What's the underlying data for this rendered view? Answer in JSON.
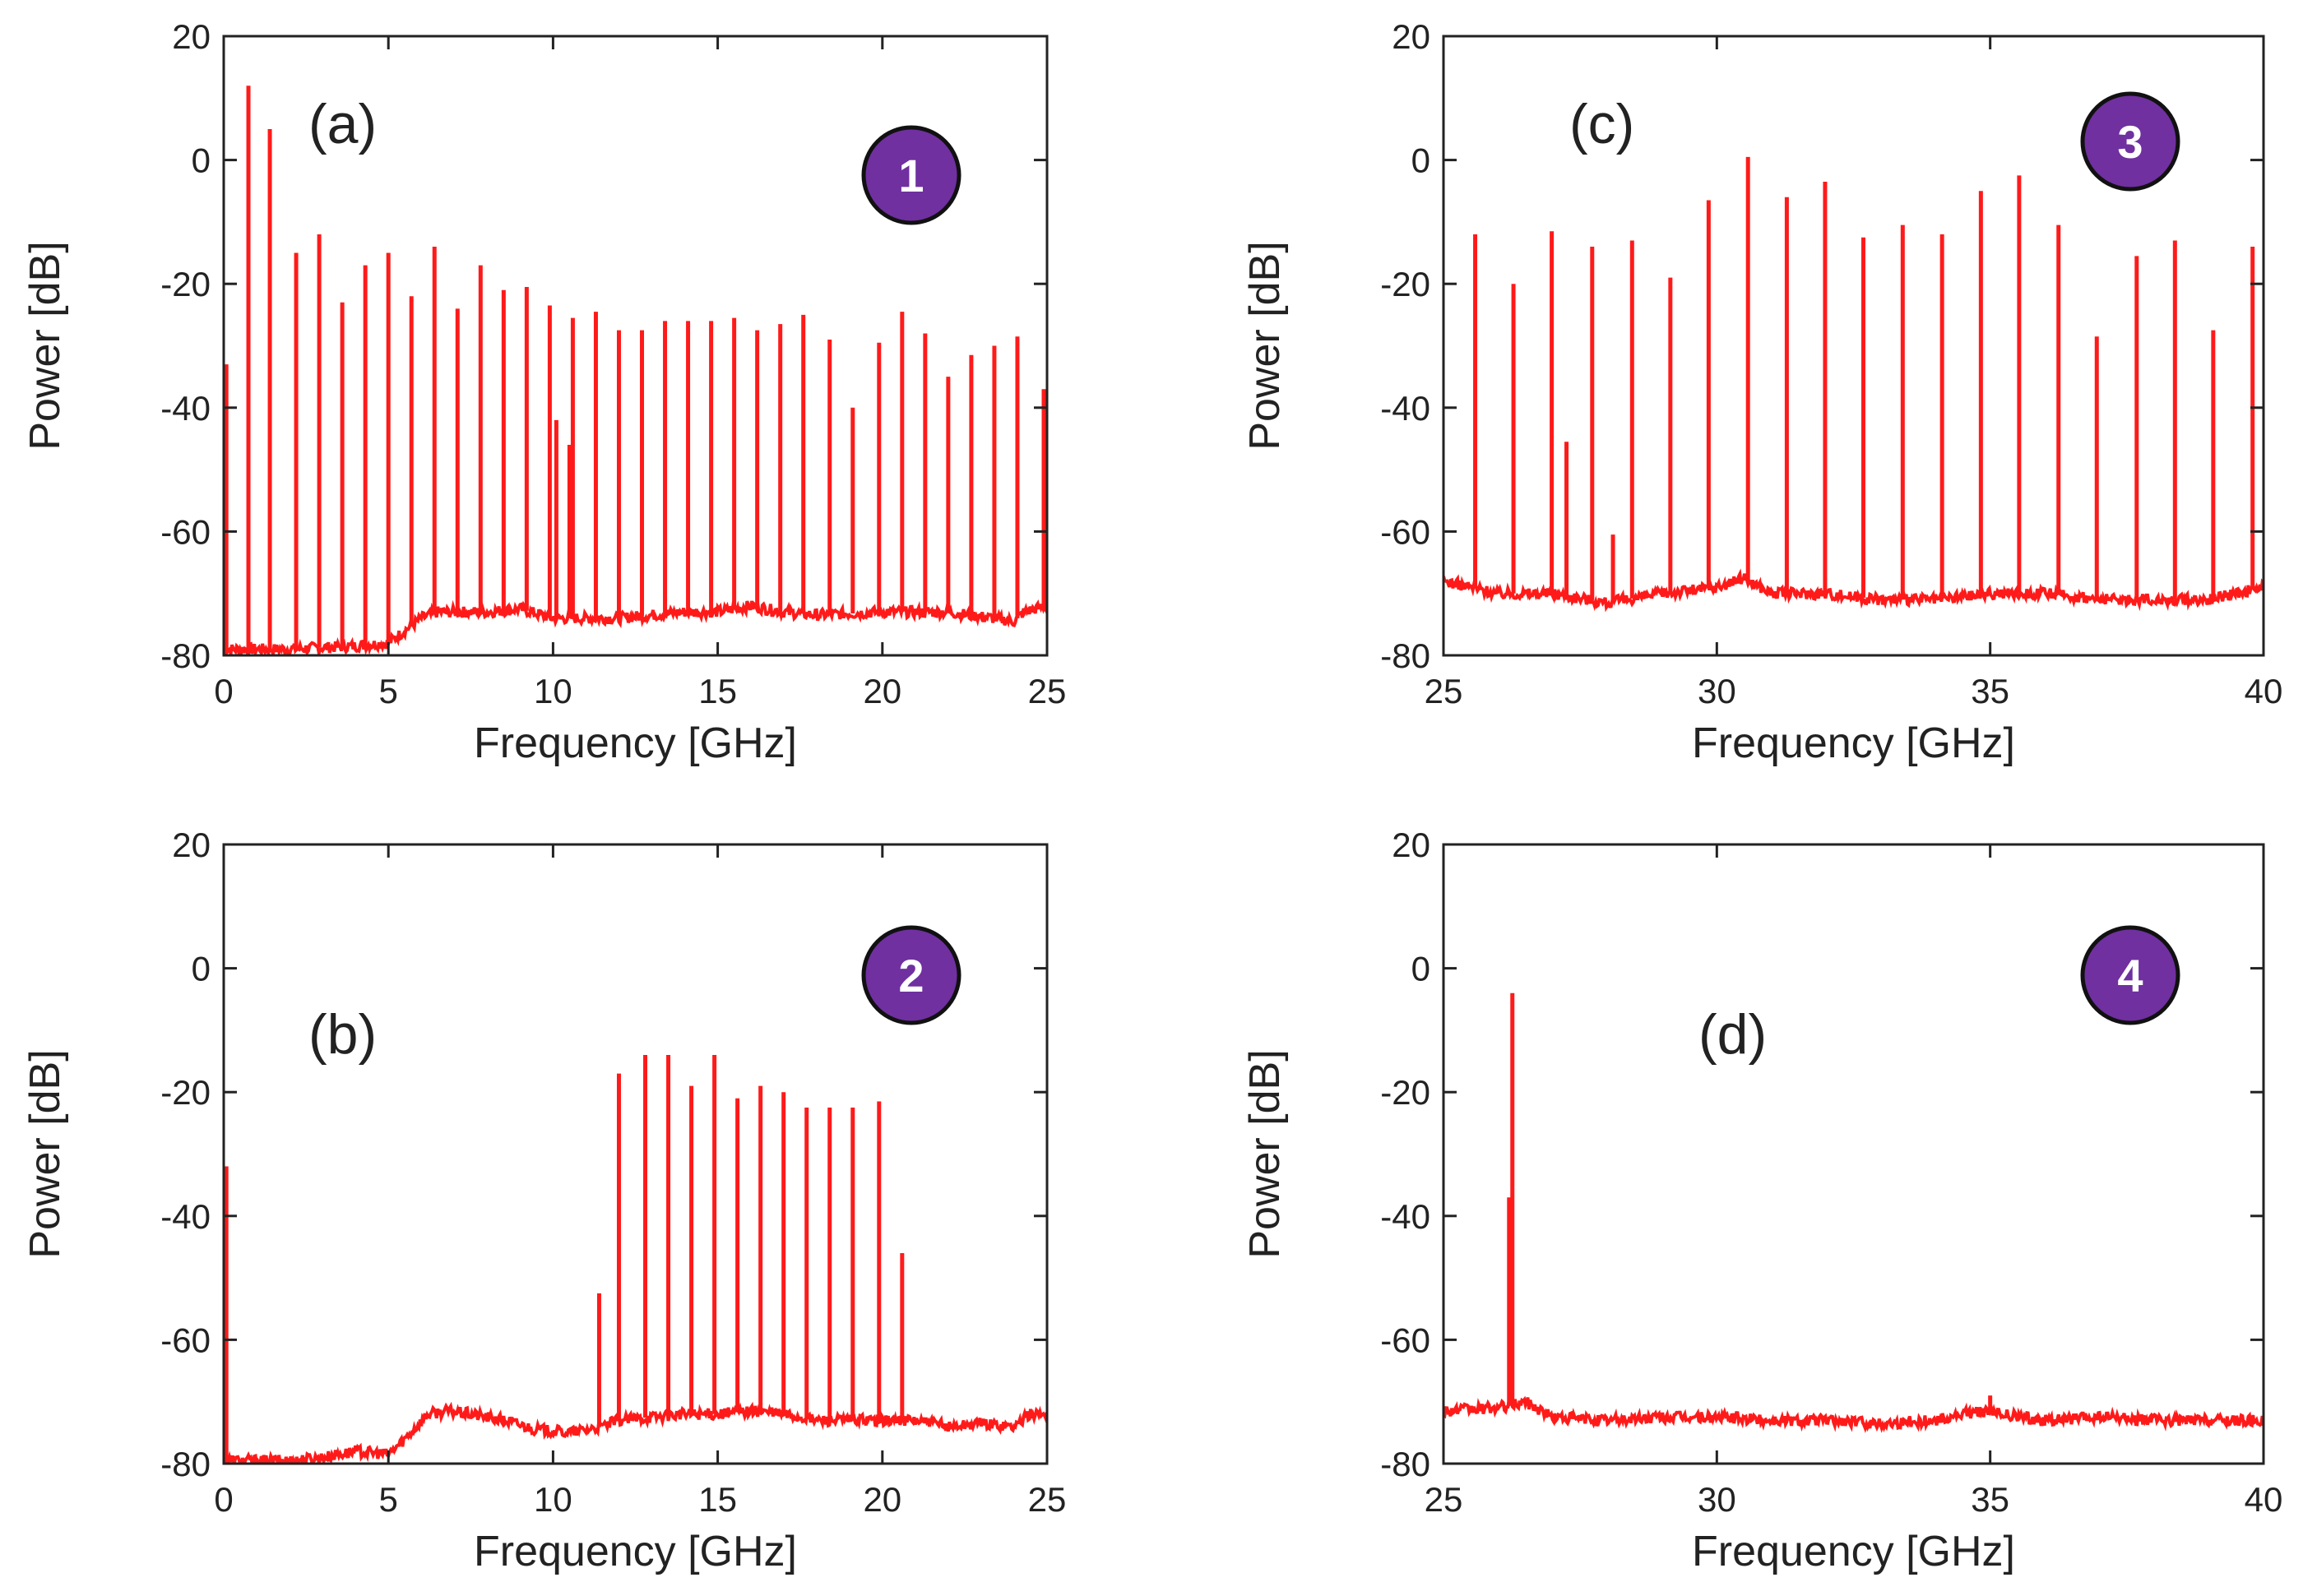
{
  "colors": {
    "trace": "#ff1a1a",
    "axis": "#222222",
    "badge_fill": "#7030a0",
    "badge_stroke": "#111111",
    "badge_text": "#ffffff"
  },
  "chart_data": [
    {
      "type": "line",
      "panel_label": "(a)",
      "badge": "1",
      "xlabel": "Frequency [GHz]",
      "ylabel": "Power [dB]",
      "xlim": [
        0,
        25
      ],
      "ylim": [
        -80,
        20
      ],
      "xticks": [
        "0",
        "5",
        "10",
        "15",
        "20",
        "25"
      ],
      "yticks": [
        "20",
        "0",
        "-20",
        "-40",
        "-60",
        "-80"
      ],
      "floor": [
        [
          0,
          -79
        ],
        [
          2,
          -79
        ],
        [
          4,
          -78.5
        ],
        [
          5,
          -78
        ],
        [
          5.5,
          -76
        ],
        [
          6,
          -74
        ],
        [
          6.5,
          -73
        ],
        [
          8,
          -73
        ],
        [
          9,
          -72.5
        ],
        [
          10,
          -74
        ],
        [
          11,
          -74
        ],
        [
          12,
          -74
        ],
        [
          14,
          -73
        ],
        [
          15,
          -73
        ],
        [
          16,
          -72
        ],
        [
          17,
          -73
        ],
        [
          18,
          -73.5
        ],
        [
          20,
          -73
        ],
        [
          22,
          -73
        ],
        [
          24,
          -74.5
        ],
        [
          24.3,
          -73
        ],
        [
          25,
          -72
        ]
      ],
      "peaks": [
        {
          "x": 0.08,
          "y": -33
        },
        {
          "x": 0.75,
          "y": 12
        },
        {
          "x": 1.4,
          "y": 5
        },
        {
          "x": 2.2,
          "y": -15
        },
        {
          "x": 2.9,
          "y": -12
        },
        {
          "x": 3.6,
          "y": -23
        },
        {
          "x": 4.3,
          "y": -17
        },
        {
          "x": 5.0,
          "y": -15
        },
        {
          "x": 5.7,
          "y": -22
        },
        {
          "x": 6.4,
          "y": -14
        },
        {
          "x": 7.1,
          "y": -24
        },
        {
          "x": 7.8,
          "y": -17
        },
        {
          "x": 8.5,
          "y": -21
        },
        {
          "x": 9.2,
          "y": -20.5
        },
        {
          "x": 9.9,
          "y": -23.5
        },
        {
          "x": 10.1,
          "y": -42
        },
        {
          "x": 10.6,
          "y": -25.5
        },
        {
          "x": 10.5,
          "y": -46
        },
        {
          "x": 11.3,
          "y": -24.5
        },
        {
          "x": 12.0,
          "y": -27.5
        },
        {
          "x": 12.7,
          "y": -27.5
        },
        {
          "x": 13.4,
          "y": -26
        },
        {
          "x": 14.1,
          "y": -26
        },
        {
          "x": 14.8,
          "y": -26
        },
        {
          "x": 15.5,
          "y": -25.5
        },
        {
          "x": 16.2,
          "y": -27.5
        },
        {
          "x": 16.9,
          "y": -26.5
        },
        {
          "x": 17.6,
          "y": -25
        },
        {
          "x": 18.4,
          "y": -29
        },
        {
          "x": 19.1,
          "y": -40
        },
        {
          "x": 19.9,
          "y": -29.5
        },
        {
          "x": 20.6,
          "y": -24.5
        },
        {
          "x": 21.3,
          "y": -28
        },
        {
          "x": 22.0,
          "y": -35
        },
        {
          "x": 22.7,
          "y": -31.5
        },
        {
          "x": 23.4,
          "y": -30
        },
        {
          "x": 24.1,
          "y": -28.5
        },
        {
          "x": 24.9,
          "y": -37
        }
      ]
    },
    {
      "type": "line",
      "panel_label": "(b)",
      "badge": "2",
      "xlabel": "Frequency [GHz]",
      "ylabel": "Power [dB]",
      "xlim": [
        0,
        25
      ],
      "ylim": [
        -80,
        20
      ],
      "xticks": [
        "0",
        "5",
        "10",
        "15",
        "20",
        "25"
      ],
      "yticks": [
        "20",
        "0",
        "-20",
        "-40",
        "-60",
        "-80"
      ],
      "floor": [
        [
          0,
          -79.5
        ],
        [
          2,
          -79.5
        ],
        [
          3,
          -79
        ],
        [
          4,
          -78
        ],
        [
          5,
          -78.5
        ],
        [
          5.5,
          -76
        ],
        [
          6.2,
          -72
        ],
        [
          6.8,
          -71.5
        ],
        [
          7.5,
          -72
        ],
        [
          8.5,
          -73
        ],
        [
          9.5,
          -74.5
        ],
        [
          10.5,
          -75
        ],
        [
          11.5,
          -74
        ],
        [
          12,
          -73
        ],
        [
          13,
          -72.5
        ],
        [
          14,
          -72
        ],
        [
          15,
          -72
        ],
        [
          16,
          -71.5
        ],
        [
          17,
          -72
        ],
        [
          18,
          -73
        ],
        [
          20,
          -73
        ],
        [
          21,
          -73
        ],
        [
          22,
          -74
        ],
        [
          23,
          -73.5
        ],
        [
          24,
          -74
        ],
        [
          24.5,
          -72
        ],
        [
          25,
          -72
        ]
      ],
      "peaks": [
        {
          "x": 0.08,
          "y": -32
        },
        {
          "x": 11.4,
          "y": -52.5
        },
        {
          "x": 12.0,
          "y": -17
        },
        {
          "x": 12.8,
          "y": -14
        },
        {
          "x": 13.5,
          "y": -14
        },
        {
          "x": 14.2,
          "y": -19
        },
        {
          "x": 14.9,
          "y": -14
        },
        {
          "x": 15.6,
          "y": -21
        },
        {
          "x": 16.3,
          "y": -19
        },
        {
          "x": 17.0,
          "y": -20
        },
        {
          "x": 17.7,
          "y": -22.5
        },
        {
          "x": 18.4,
          "y": -22.5
        },
        {
          "x": 19.1,
          "y": -22.5
        },
        {
          "x": 19.9,
          "y": -21.5
        },
        {
          "x": 20.6,
          "y": -46
        }
      ]
    },
    {
      "type": "line",
      "panel_label": "(c)",
      "badge": "3",
      "xlabel": "Frequency [GHz]",
      "ylabel": "Power [dB]",
      "xlim": [
        25,
        40
      ],
      "ylim": [
        -80,
        20
      ],
      "xticks": [
        "25",
        "30",
        "35",
        "40"
      ],
      "yticks": [
        "20",
        "0",
        "-20",
        "-40",
        "-60",
        "-80"
      ],
      "floor": [
        [
          25,
          -68
        ],
        [
          26,
          -70
        ],
        [
          27,
          -70
        ],
        [
          28,
          -71.5
        ],
        [
          29,
          -70
        ],
        [
          30,
          -69
        ],
        [
          30.5,
          -67.5
        ],
        [
          31,
          -70
        ],
        [
          32,
          -70
        ],
        [
          33,
          -71
        ],
        [
          34,
          -71
        ],
        [
          35,
          -70
        ],
        [
          36,
          -70
        ],
        [
          37,
          -71
        ],
        [
          38,
          -71
        ],
        [
          39,
          -71
        ],
        [
          39.5,
          -70
        ],
        [
          40,
          -69
        ]
      ],
      "peaks": [
        {
          "x": 25.58,
          "y": -12
        },
        {
          "x": 26.28,
          "y": -20
        },
        {
          "x": 26.98,
          "y": -11.5
        },
        {
          "x": 27.25,
          "y": -45.5
        },
        {
          "x": 27.72,
          "y": -14
        },
        {
          "x": 28.1,
          "y": -60.5
        },
        {
          "x": 28.45,
          "y": -13
        },
        {
          "x": 29.15,
          "y": -19
        },
        {
          "x": 29.85,
          "y": -6.5
        },
        {
          "x": 30.57,
          "y": 0.5
        },
        {
          "x": 31.28,
          "y": -6
        },
        {
          "x": 31.98,
          "y": -3.5
        },
        {
          "x": 32.68,
          "y": -12.5
        },
        {
          "x": 33.4,
          "y": -10.5
        },
        {
          "x": 34.12,
          "y": -12
        },
        {
          "x": 34.83,
          "y": -5
        },
        {
          "x": 35.53,
          "y": -2.5
        },
        {
          "x": 36.25,
          "y": -10.5
        },
        {
          "x": 36.95,
          "y": -28.5
        },
        {
          "x": 37.68,
          "y": -15.5
        },
        {
          "x": 38.38,
          "y": -13
        },
        {
          "x": 39.08,
          "y": -27.5
        },
        {
          "x": 39.8,
          "y": -14
        }
      ]
    },
    {
      "type": "line",
      "panel_label": "(d)",
      "badge": "4",
      "xlabel": "Frequency [GHz]",
      "ylabel": "Power [dB]",
      "xlim": [
        25,
        40
      ],
      "ylim": [
        -80,
        20
      ],
      "xticks": [
        "25",
        "30",
        "35",
        "40"
      ],
      "yticks": [
        "20",
        "0",
        "-20",
        "-40",
        "-60",
        "-80"
      ],
      "floor": [
        [
          25,
          -71.5
        ],
        [
          26,
          -71
        ],
        [
          26.5,
          -70
        ],
        [
          27,
          -72.5
        ],
        [
          28,
          -73
        ],
        [
          29,
          -72.5
        ],
        [
          30,
          -72.5
        ],
        [
          31,
          -73
        ],
        [
          32,
          -73
        ],
        [
          33,
          -73.5
        ],
        [
          34,
          -73
        ],
        [
          34.8,
          -71.5
        ],
        [
          35.2,
          -72
        ],
        [
          36,
          -73
        ],
        [
          37,
          -72.5
        ],
        [
          38,
          -73
        ],
        [
          39,
          -73
        ],
        [
          40,
          -73
        ]
      ],
      "peaks": [
        {
          "x": 26.2,
          "y": -37
        },
        {
          "x": 26.26,
          "y": -4
        },
        {
          "x": 35.0,
          "y": -69
        }
      ]
    }
  ]
}
